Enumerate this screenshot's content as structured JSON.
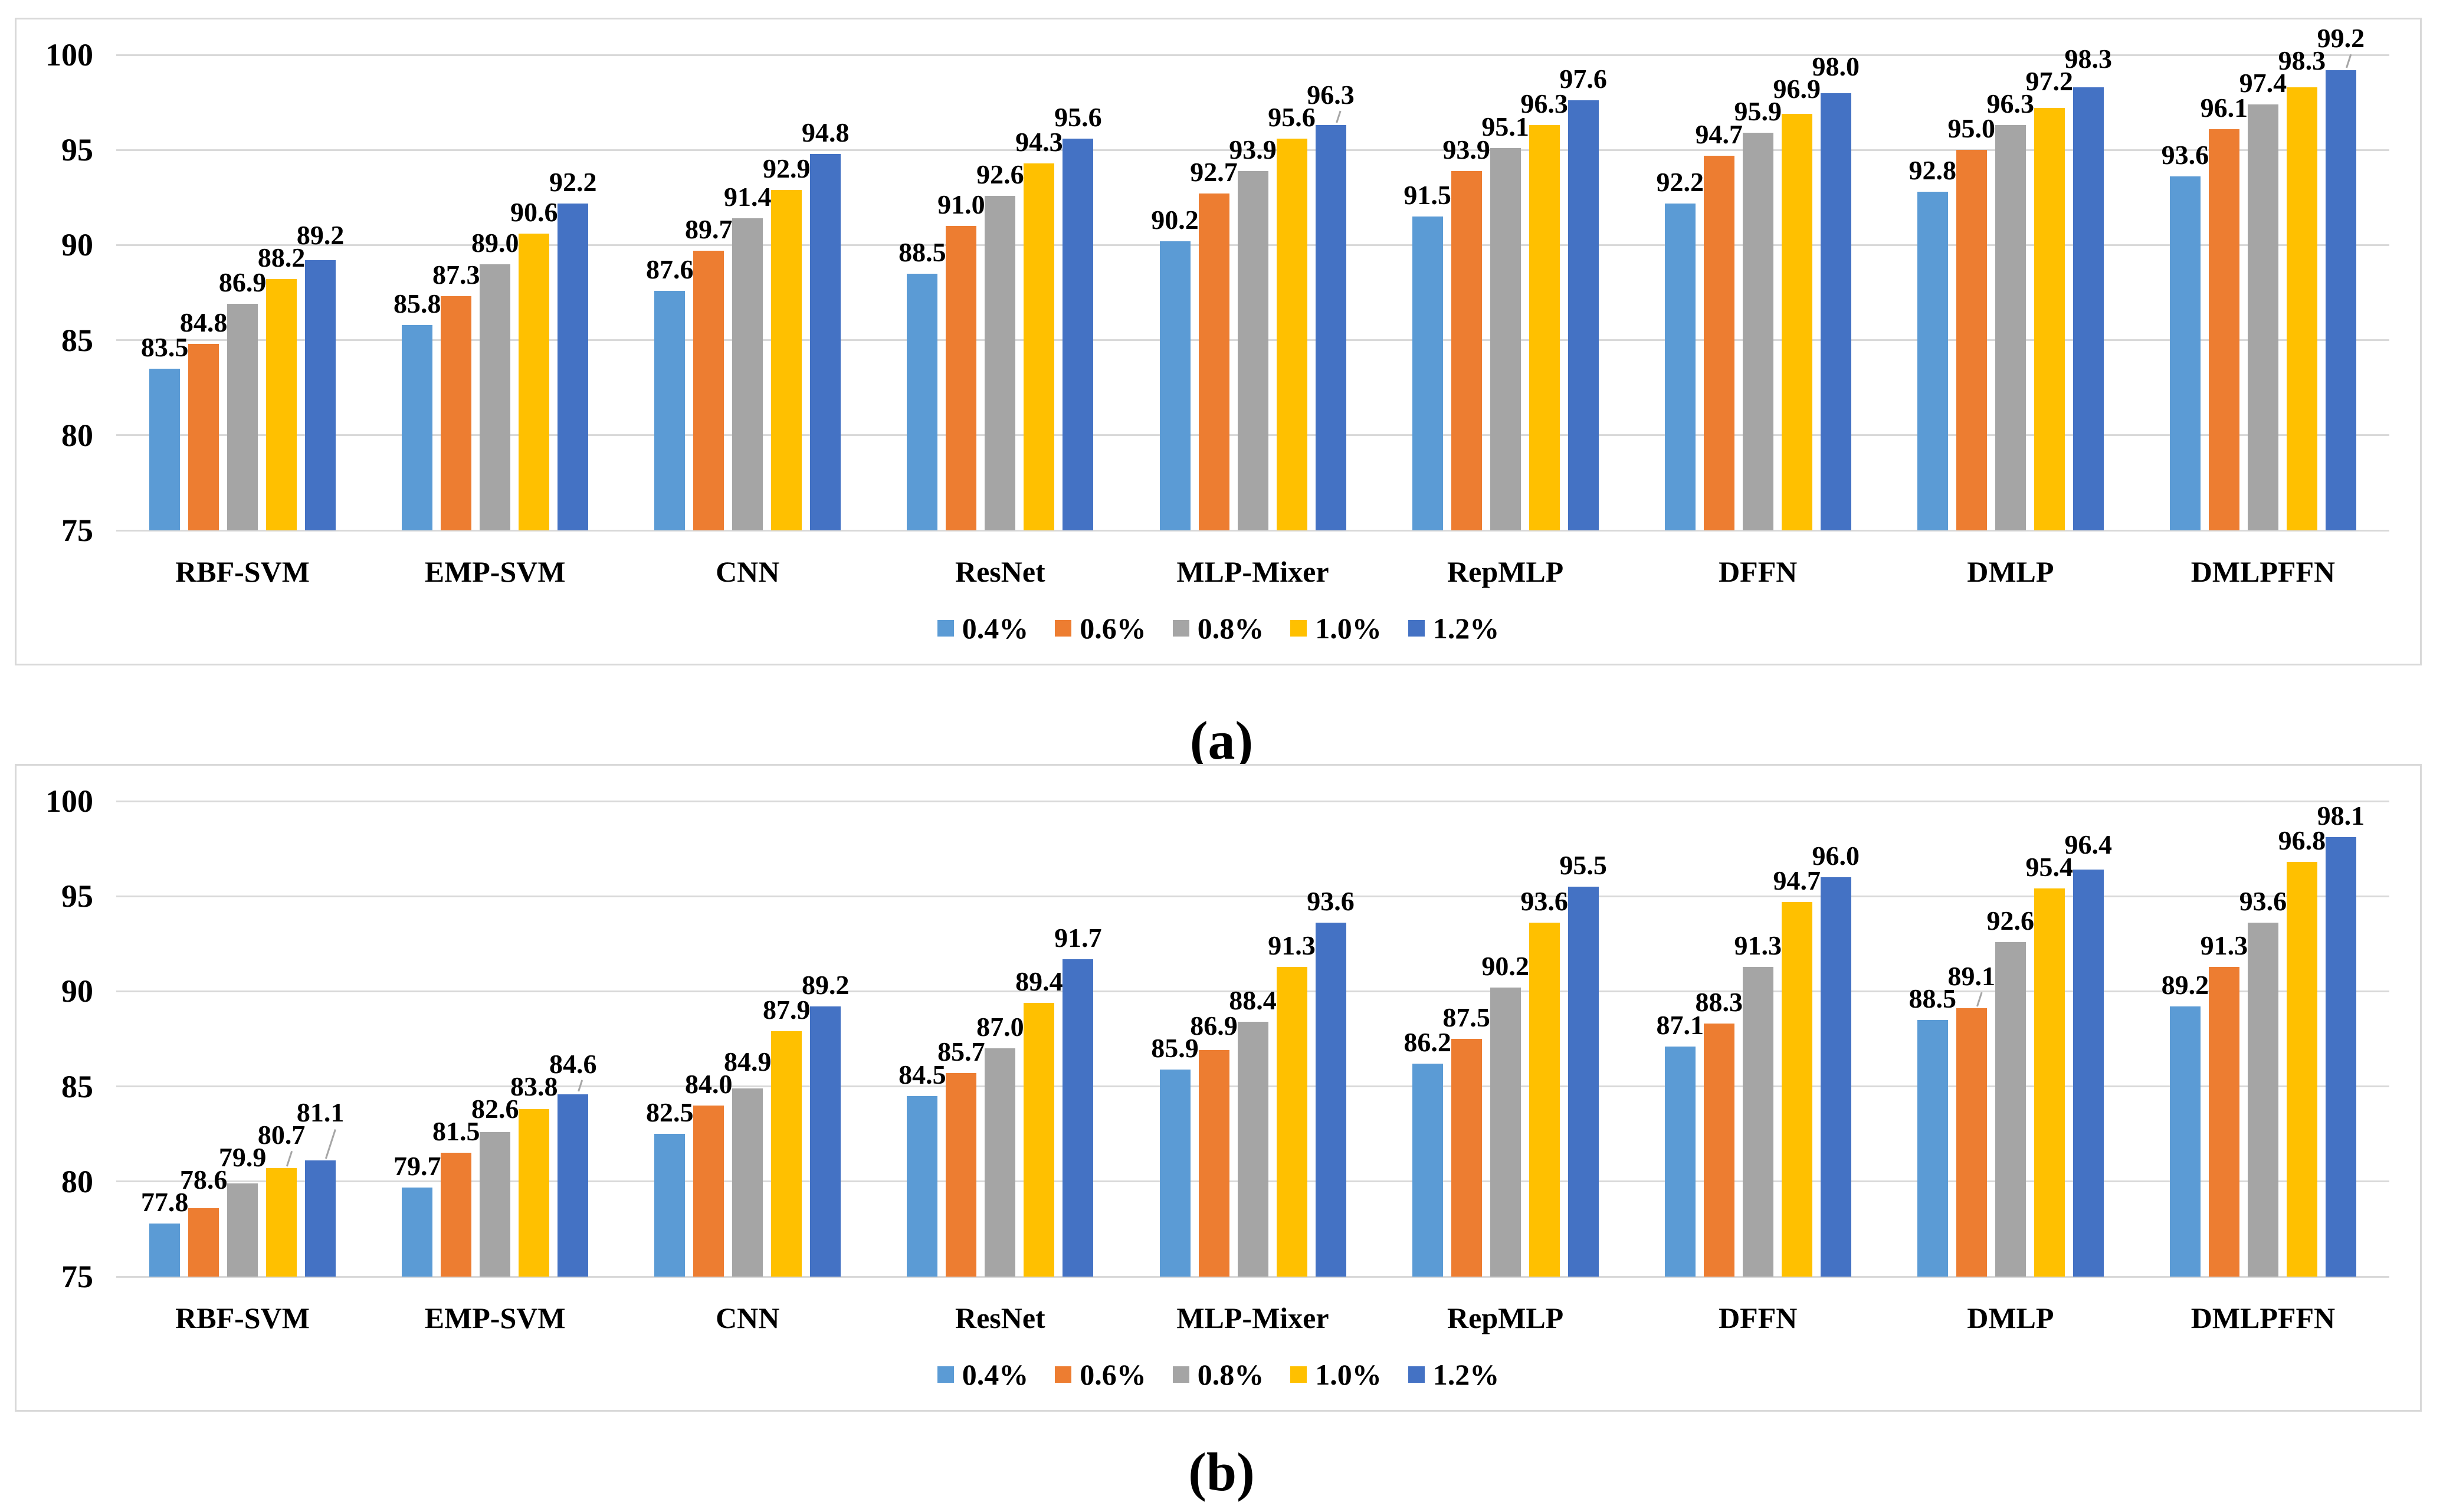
{
  "captions": {
    "a": "(a)",
    "b": "(b)"
  },
  "colors": {
    "series": [
      "#5B9BD5",
      "#ED7D31",
      "#A5A5A5",
      "#FFC000",
      "#4472C4"
    ],
    "gridline": "#D9D9D9",
    "panel_border": "#D9D9D9",
    "leader_line": "#A6A6A6",
    "text": "#000000",
    "background": "#FFFFFF"
  },
  "chart_data": [
    {
      "type": "bar",
      "panel": "a",
      "title": "",
      "xlabel": "",
      "ylabel": "",
      "ylim": [
        75,
        100
      ],
      "yticks": [
        75,
        80,
        85,
        90,
        95,
        100
      ],
      "grid": true,
      "legend_position": "bottom",
      "value_labels": true,
      "value_format": "one-decimal",
      "categories": [
        "RBF-SVM",
        "EMP-SVM",
        "CNN",
        "ResNet",
        "MLP-Mixer",
        "RepMLP",
        "DFFN",
        "DMLP",
        "DMLPFFN"
      ],
      "series": [
        {
          "name": "0.4%",
          "values": [
            83.5,
            85.8,
            87.6,
            88.5,
            90.2,
            91.5,
            92.2,
            92.8,
            93.6
          ]
        },
        {
          "name": "0.6%",
          "values": [
            84.8,
            87.3,
            89.7,
            91.0,
            92.7,
            93.9,
            94.7,
            95.0,
            96.1
          ]
        },
        {
          "name": "0.8%",
          "values": [
            86.9,
            89.0,
            91.4,
            92.6,
            93.9,
            95.1,
            95.9,
            96.3,
            97.4
          ]
        },
        {
          "name": "1.0%",
          "values": [
            88.2,
            90.6,
            92.9,
            94.3,
            95.6,
            96.3,
            96.9,
            97.2,
            98.3
          ]
        },
        {
          "name": "1.2%",
          "values": [
            89.2,
            92.2,
            94.8,
            95.6,
            96.3,
            97.6,
            98.0,
            98.3,
            99.2
          ]
        }
      ]
    },
    {
      "type": "bar",
      "panel": "b",
      "title": "",
      "xlabel": "",
      "ylabel": "",
      "ylim": [
        75,
        100
      ],
      "yticks": [
        75,
        80,
        85,
        90,
        95,
        100
      ],
      "grid": true,
      "legend_position": "bottom",
      "value_labels": true,
      "value_format": "one-decimal",
      "categories": [
        "RBF-SVM",
        "EMP-SVM",
        "CNN",
        "ResNet",
        "MLP-Mixer",
        "RepMLP",
        "DFFN",
        "DMLP",
        "DMLPFFN"
      ],
      "series": [
        {
          "name": "0.4%",
          "values": [
            77.8,
            79.7,
            82.5,
            84.5,
            85.9,
            86.2,
            87.1,
            88.5,
            89.2
          ]
        },
        {
          "name": "0.6%",
          "values": [
            78.6,
            81.5,
            84.0,
            85.7,
            86.9,
            87.5,
            88.3,
            89.1,
            91.3
          ]
        },
        {
          "name": "0.8%",
          "values": [
            79.9,
            82.6,
            84.9,
            87.0,
            88.4,
            90.2,
            91.3,
            92.6,
            93.6
          ]
        },
        {
          "name": "1.0%",
          "values": [
            80.7,
            83.8,
            87.9,
            89.4,
            91.3,
            93.6,
            94.7,
            95.4,
            96.8
          ]
        },
        {
          "name": "1.2%",
          "values": [
            81.1,
            84.6,
            89.2,
            91.7,
            93.6,
            95.5,
            96.0,
            96.4,
            98.1
          ]
        }
      ]
    }
  ]
}
